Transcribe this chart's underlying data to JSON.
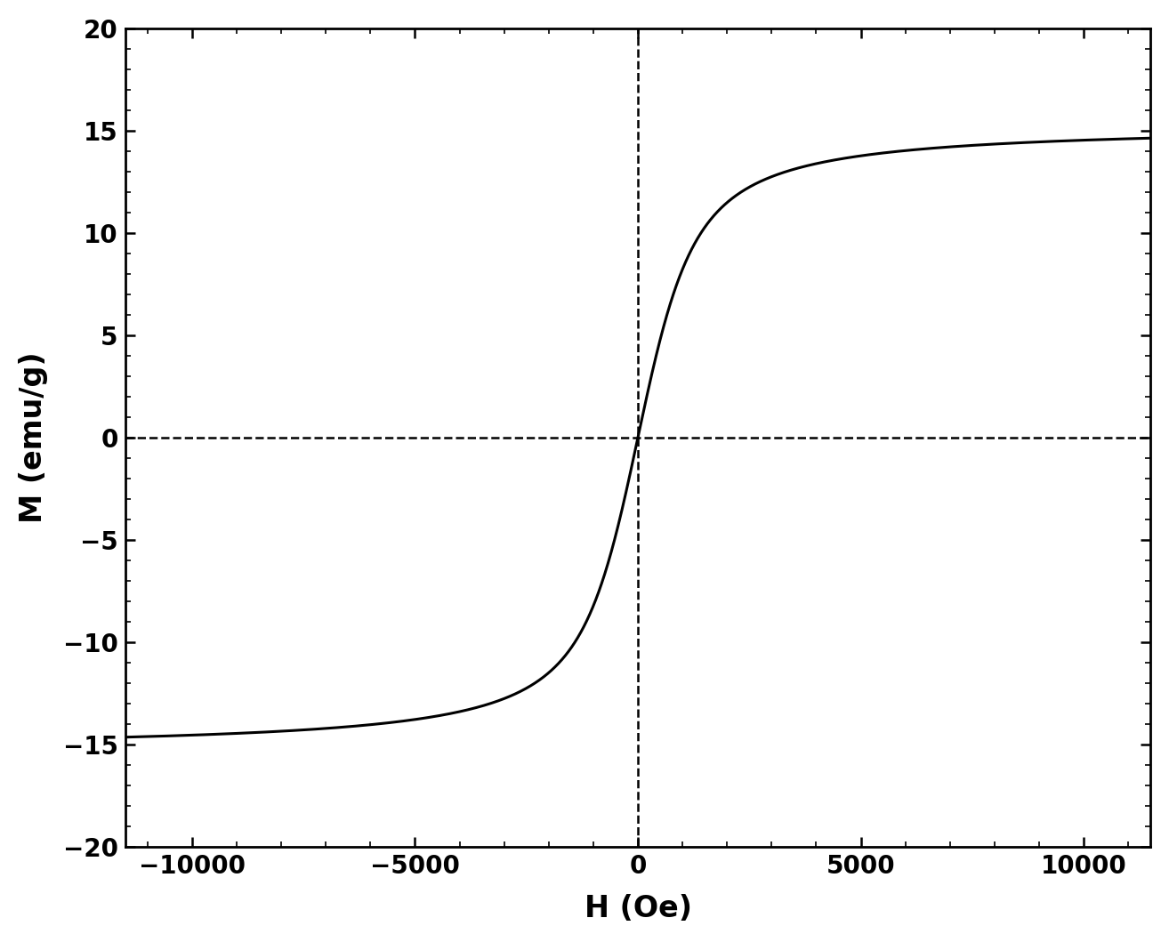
{
  "xlabel": "H (Oe)",
  "ylabel": "M (emu/g)",
  "xlim": [
    -11500,
    11500
  ],
  "ylim": [
    -20,
    20
  ],
  "xticks": [
    -10000,
    -5000,
    0,
    5000,
    10000
  ],
  "yticks": [
    -20,
    -15,
    -10,
    -5,
    0,
    5,
    10,
    15,
    20
  ],
  "saturation_M": 15.3,
  "curve_color": "#000000",
  "dashed_color": "#000000",
  "line_width": 2.2,
  "dashed_linewidth": 1.8,
  "background_color": "#ffffff",
  "xlabel_fontsize": 24,
  "ylabel_fontsize": 24,
  "tick_fontsize": 20,
  "spine_linewidth": 2.0,
  "alpha_param": 0.0012
}
